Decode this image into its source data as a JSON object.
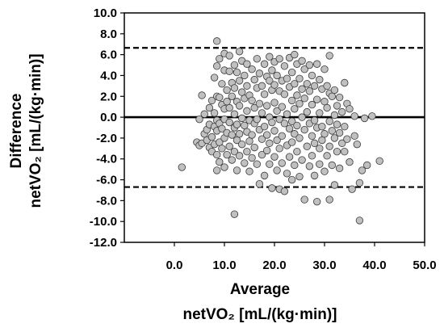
{
  "chart_data": {
    "type": "scatter",
    "xlabel": "Average",
    "xlabel_unit": "netVO₂ [mL/(kg·min)]",
    "ylabel": "Difference",
    "ylabel_unit": "netVO₂ [mL/(kg·min)]",
    "xlim": [
      -10,
      50
    ],
    "ylim": [
      -12,
      10
    ],
    "x_ticks": [
      "0.0",
      "10.0",
      "20.0",
      "30.0",
      "40.0",
      "50.0"
    ],
    "y_ticks": [
      "10.0",
      "8.0",
      "6.0",
      "4.0",
      "2.0",
      "0.0",
      "-2.0",
      "-4.0",
      "-6.0",
      "-8.0",
      "-10.0",
      "-12.0"
    ],
    "reference_lines": [
      {
        "y": 0.0,
        "style": "solid"
      },
      {
        "y": 6.65,
        "style": "dashed"
      },
      {
        "y": -6.7,
        "style": "dashed"
      }
    ],
    "grid": false,
    "legend": "none",
    "points": [
      [
        1.5,
        -4.8
      ],
      [
        4.5,
        -2.4
      ],
      [
        5.0,
        -2.7
      ],
      [
        5.0,
        -0.2
      ],
      [
        5.5,
        2.1
      ],
      [
        5.5,
        -2.5
      ],
      [
        6.0,
        -1.6
      ],
      [
        6.0,
        0.3
      ],
      [
        6.5,
        -1.2
      ],
      [
        6.5,
        -2.2
      ],
      [
        7.0,
        0.9
      ],
      [
        7.0,
        -0.7
      ],
      [
        7.0,
        -2.9
      ],
      [
        7.5,
        1.6
      ],
      [
        7.5,
        -1.9
      ],
      [
        7.5,
        -3.3
      ],
      [
        8.0,
        3.8
      ],
      [
        8.0,
        0.4
      ],
      [
        8.0,
        -0.9
      ],
      [
        8.0,
        -2.6
      ],
      [
        8.5,
        7.3
      ],
      [
        8.5,
        4.9
      ],
      [
        8.5,
        2.0
      ],
      [
        8.5,
        -0.3
      ],
      [
        8.5,
        -1.3
      ],
      [
        8.5,
        -3.6
      ],
      [
        8.5,
        -5.1
      ],
      [
        9.0,
        5.6
      ],
      [
        9.0,
        1.9
      ],
      [
        9.0,
        -0.6
      ],
      [
        9.0,
        -2.4
      ],
      [
        9.0,
        -4.3
      ],
      [
        9.5,
        3.2
      ],
      [
        9.5,
        1.2
      ],
      [
        9.5,
        -1.1
      ],
      [
        9.5,
        -3.0
      ],
      [
        10.0,
        6.1
      ],
      [
        10.0,
        4.5
      ],
      [
        10.0,
        0.8
      ],
      [
        10.0,
        -0.2
      ],
      [
        10.0,
        -2.0
      ],
      [
        10.0,
        -4.8
      ],
      [
        10.5,
        2.6
      ],
      [
        10.5,
        1.5
      ],
      [
        10.5,
        -1.5
      ],
      [
        10.5,
        -3.6
      ],
      [
        11.0,
        5.9
      ],
      [
        11.0,
        4.4
      ],
      [
        11.0,
        0.9
      ],
      [
        11.0,
        -0.5
      ],
      [
        11.0,
        -2.8
      ],
      [
        11.5,
        3.3
      ],
      [
        11.5,
        2.0
      ],
      [
        11.5,
        -1.7
      ],
      [
        11.5,
        -4.1
      ],
      [
        12.0,
        -9.3
      ],
      [
        12.0,
        5.0
      ],
      [
        12.0,
        2.8
      ],
      [
        12.0,
        0.3
      ],
      [
        12.0,
        -1.0
      ],
      [
        12.0,
        -3.3
      ],
      [
        12.5,
        4.3
      ],
      [
        12.5,
        1.5
      ],
      [
        12.5,
        -0.7
      ],
      [
        12.5,
        -2.2
      ],
      [
        12.5,
        -5.1
      ],
      [
        13.0,
        6.3
      ],
      [
        13.0,
        3.5
      ],
      [
        13.0,
        1.1
      ],
      [
        13.0,
        -1.6
      ],
      [
        13.0,
        -3.7
      ],
      [
        13.5,
        5.4
      ],
      [
        13.5,
        2.4
      ],
      [
        13.5,
        -0.1
      ],
      [
        13.5,
        -2.6
      ],
      [
        14.0,
        4.0
      ],
      [
        14.0,
        1.8
      ],
      [
        14.0,
        -0.8
      ],
      [
        14.0,
        -4.4
      ],
      [
        14.5,
        5.1
      ],
      [
        14.5,
        3.0
      ],
      [
        14.5,
        0.6
      ],
      [
        14.5,
        -1.4
      ],
      [
        14.5,
        -3.3
      ],
      [
        15.0,
        2.1
      ],
      [
        15.0,
        -0.3
      ],
      [
        15.0,
        -2.3
      ],
      [
        15.0,
        -5.2
      ],
      [
        15.5,
        4.6
      ],
      [
        15.5,
        1.6
      ],
      [
        15.5,
        -1.7
      ],
      [
        15.5,
        -3.9
      ],
      [
        16.0,
        3.6
      ],
      [
        16.0,
        0.9
      ],
      [
        16.0,
        -0.6
      ],
      [
        16.0,
        -2.9
      ],
      [
        16.5,
        5.6
      ],
      [
        16.5,
        2.8
      ],
      [
        16.5,
        -0.2
      ],
      [
        16.5,
        -4.5
      ],
      [
        17.0,
        4.2
      ],
      [
        17.0,
        1.3
      ],
      [
        17.0,
        -1.2
      ],
      [
        17.0,
        -6.4
      ],
      [
        17.5,
        3.0
      ],
      [
        17.5,
        0.4
      ],
      [
        17.5,
        -2.1
      ],
      [
        17.5,
        -3.6
      ],
      [
        18.0,
        5.1
      ],
      [
        18.0,
        2.2
      ],
      [
        18.0,
        -0.9
      ],
      [
        18.0,
        -5.6
      ],
      [
        18.5,
        3.9
      ],
      [
        18.5,
        1.1
      ],
      [
        18.5,
        -1.7
      ],
      [
        18.5,
        -3.2
      ],
      [
        19.0,
        5.8
      ],
      [
        19.0,
        3.5
      ],
      [
        19.0,
        0.0
      ],
      [
        19.0,
        -2.5
      ],
      [
        19.0,
        -4.5
      ],
      [
        19.5,
        4.5
      ],
      [
        19.5,
        2.6
      ],
      [
        19.5,
        -0.5
      ],
      [
        19.5,
        -6.8
      ],
      [
        20.0,
        5.3
      ],
      [
        20.0,
        3.1
      ],
      [
        20.0,
        1.4
      ],
      [
        20.0,
        -1.3
      ],
      [
        20.0,
        -3.8
      ],
      [
        20.5,
        4.0
      ],
      [
        20.5,
        0.6
      ],
      [
        20.5,
        -2.2
      ],
      [
        20.5,
        -5.1
      ],
      [
        21.0,
        5.6
      ],
      [
        21.0,
        2.5
      ],
      [
        21.0,
        -0.2
      ],
      [
        21.0,
        -3.0
      ],
      [
        21.0,
        -6.9
      ],
      [
        21.5,
        3.5
      ],
      [
        21.5,
        1.0
      ],
      [
        21.5,
        -1.8
      ],
      [
        21.5,
        -4.4
      ],
      [
        22.0,
        4.9
      ],
      [
        22.0,
        2.2
      ],
      [
        22.0,
        -0.6
      ],
      [
        22.0,
        -7.1
      ],
      [
        22.5,
        3.7
      ],
      [
        22.5,
        0.3
      ],
      [
        22.5,
        -2.7
      ],
      [
        22.5,
        -5.4
      ],
      [
        23.0,
        5.7
      ],
      [
        23.0,
        2.9
      ],
      [
        23.0,
        -1.1
      ],
      [
        23.0,
        -3.8
      ],
      [
        23.5,
        4.3
      ],
      [
        23.5,
        1.6
      ],
      [
        23.5,
        -0.4
      ],
      [
        23.5,
        -2.4
      ],
      [
        23.5,
        -6.0
      ],
      [
        24.0,
        6.0
      ],
      [
        24.0,
        3.2
      ],
      [
        24.0,
        0.8
      ],
      [
        24.0,
        -1.6
      ],
      [
        24.0,
        -4.6
      ],
      [
        24.5,
        5.1
      ],
      [
        24.5,
        2.1
      ],
      [
        24.5,
        -0.8
      ],
      [
        24.5,
        -3.3
      ],
      [
        25.0,
        3.7
      ],
      [
        25.0,
        1.3
      ],
      [
        25.0,
        -2.0
      ],
      [
        25.0,
        -5.7
      ],
      [
        25.5,
        5.4
      ],
      [
        25.5,
        2.7
      ],
      [
        25.5,
        0.0
      ],
      [
        25.5,
        -4.1
      ],
      [
        26.0,
        4.6
      ],
      [
        26.0,
        1.8
      ],
      [
        26.0,
        -1.2
      ],
      [
        26.0,
        -7.9
      ],
      [
        26.5,
        3.2
      ],
      [
        26.5,
        0.5
      ],
      [
        26.5,
        -2.8
      ],
      [
        27.0,
        5.0
      ],
      [
        27.0,
        2.5
      ],
      [
        27.0,
        -0.6
      ],
      [
        27.0,
        -4.7
      ],
      [
        27.5,
        4.0
      ],
      [
        27.5,
        1.2
      ],
      [
        27.5,
        -1.8
      ],
      [
        27.5,
        -3.7
      ],
      [
        28.0,
        3.0
      ],
      [
        28.0,
        -0.3
      ],
      [
        28.0,
        -2.5
      ],
      [
        28.0,
        -5.6
      ],
      [
        28.5,
        5.1
      ],
      [
        28.5,
        1.7
      ],
      [
        28.5,
        -1.0
      ],
      [
        28.5,
        -8.1
      ],
      [
        29.0,
        3.6
      ],
      [
        29.0,
        0.4
      ],
      [
        29.0,
        -3.0
      ],
      [
        29.0,
        -4.5
      ],
      [
        29.5,
        2.7
      ],
      [
        29.5,
        -0.9
      ],
      [
        29.5,
        -2.2
      ],
      [
        30.0,
        4.6
      ],
      [
        30.0,
        1.5
      ],
      [
        30.0,
        -1.6
      ],
      [
        30.0,
        -5.2
      ],
      [
        30.5,
        3.0
      ],
      [
        30.5,
        0.9
      ],
      [
        30.5,
        -3.7
      ],
      [
        31.0,
        5.9
      ],
      [
        31.0,
        2.3
      ],
      [
        31.0,
        -0.4
      ],
      [
        31.0,
        -2.8
      ],
      [
        31.0,
        -7.9
      ],
      [
        31.5,
        2.0
      ],
      [
        31.5,
        -1.3
      ],
      [
        31.5,
        -4.6
      ],
      [
        32.0,
        2.6
      ],
      [
        32.0,
        0.2
      ],
      [
        32.0,
        -2.0
      ],
      [
        32.0,
        -6.5
      ],
      [
        32.5,
        1.1
      ],
      [
        32.5,
        -0.7
      ],
      [
        32.5,
        -3.3
      ],
      [
        33.0,
        1.9
      ],
      [
        33.0,
        -1.5
      ],
      [
        33.0,
        -4.9
      ],
      [
        33.5,
        0.5
      ],
      [
        33.5,
        -2.5
      ],
      [
        34.0,
        3.3
      ],
      [
        34.0,
        -0.9
      ],
      [
        34.0,
        -3.3
      ],
      [
        34.5,
        1.3
      ],
      [
        34.5,
        -2.1
      ],
      [
        35.0,
        0.8
      ],
      [
        35.0,
        -4.3
      ],
      [
        35.5,
        -6.9
      ],
      [
        36.0,
        0.1
      ],
      [
        36.0,
        -1.8
      ],
      [
        36.5,
        -2.6
      ],
      [
        37.0,
        -6.3
      ],
      [
        37.0,
        -9.9
      ],
      [
        37.5,
        -5.1
      ],
      [
        38.0,
        -0.1
      ],
      [
        38.5,
        -4.6
      ],
      [
        39.5,
        0.1
      ],
      [
        41.0,
        -4.2
      ]
    ]
  }
}
